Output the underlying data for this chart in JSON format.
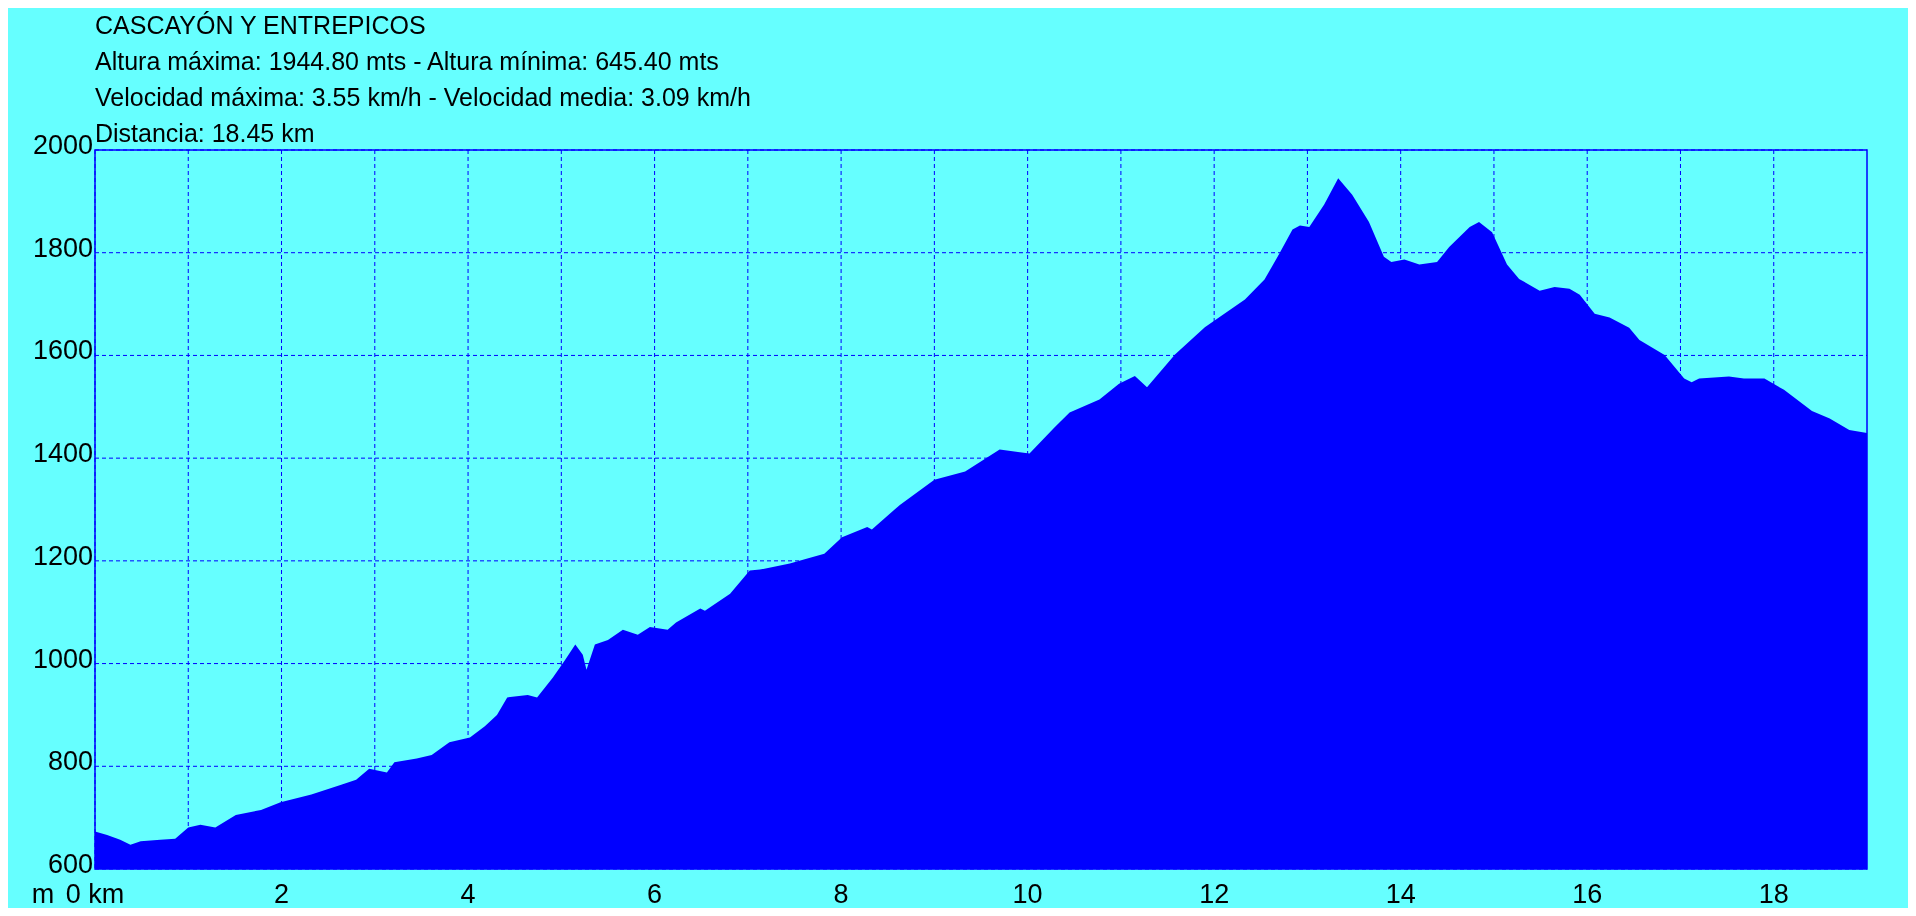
{
  "chart_data": {
    "type": "area",
    "title": "CASCAYÓN Y ENTREPICOS",
    "annotations": [
      "Altura máxima: 1944.80 mts - Altura mínima: 645.40 mts",
      "Velocidad máxima: 3.55 km/h - Velocidad media: 3.09 km/h",
      "Distancia: 18.45 km"
    ],
    "ylabel": "m",
    "x": [
      0,
      0.13,
      0.27,
      0.38,
      0.49,
      0.7,
      0.86,
      1.0,
      1.13,
      1.29,
      1.51,
      1.78,
      1.99,
      2.32,
      2.64,
      2.8,
      2.94,
      3.13,
      3.21,
      3.45,
      3.61,
      3.8,
      4.02,
      4.18,
      4.31,
      4.42,
      4.64,
      4.74,
      4.91,
      5.04,
      5.15,
      5.23,
      5.27,
      5.36,
      5.5,
      5.66,
      5.82,
      5.95,
      6.14,
      6.23,
      6.49,
      6.54,
      6.81,
      7.02,
      7.13,
      7.45,
      7.61,
      7.82,
      8.01,
      8.28,
      8.33,
      8.63,
      9.0,
      9.33,
      9.7,
      10.02,
      10.29,
      10.45,
      10.77,
      10.98,
      11.15,
      11.28,
      11.58,
      11.9,
      12.33,
      12.54,
      12.68,
      12.84,
      12.92,
      13.02,
      13.18,
      13.33,
      13.48,
      13.66,
      13.82,
      13.9,
      14.04,
      14.2,
      14.39,
      14.52,
      14.74,
      14.84,
      14.98,
      15.14,
      15.27,
      15.49,
      15.65,
      15.81,
      15.92,
      16.08,
      16.24,
      16.45,
      16.56,
      16.83,
      17.04,
      17.12,
      17.2,
      17.52,
      17.68,
      17.9,
      18.11,
      18.41,
      18.6,
      18.81,
      19.0
    ],
    "series": [
      {
        "color": "#0000ff",
        "values": [
          673,
          666,
          657,
          647,
          654,
          657,
          659,
          681,
          686,
          681,
          705,
          715,
          730,
          745,
          764,
          774,
          795,
          788,
          808,
          815,
          822,
          847,
          856,
          878,
          900,
          934,
          939,
          934,
          973,
          1007,
          1037,
          1017,
          988,
          1037,
          1046,
          1066,
          1056,
          1071,
          1066,
          1080,
          1107,
          1103,
          1136,
          1181,
          1183,
          1195,
          1203,
          1214,
          1246,
          1266,
          1261,
          1309,
          1358,
          1374,
          1417,
          1409,
          1460,
          1489,
          1514,
          1545,
          1560,
          1538,
          1602,
          1655,
          1709,
          1748,
          1792,
          1845,
          1853,
          1850,
          1894,
          1945,
          1913,
          1860,
          1792,
          1782,
          1787,
          1777,
          1782,
          1811,
          1850,
          1860,
          1840,
          1777,
          1749,
          1726,
          1733,
          1730,
          1718,
          1681,
          1674,
          1654,
          1630,
          1601,
          1555,
          1548,
          1555,
          1559,
          1555,
          1555,
          1533,
          1492,
          1477,
          1455,
          1449
        ]
      }
    ],
    "xlim": [
      0,
      19
    ],
    "xticks": [
      {
        "value": 0,
        "label": "0 km"
      },
      {
        "value": 1,
        "label": null
      },
      2,
      {
        "value": 3,
        "label": null
      },
      4,
      {
        "value": 5,
        "label": null
      },
      6,
      {
        "value": 7,
        "label": null
      },
      8,
      {
        "value": 9,
        "label": null
      },
      10,
      {
        "value": 11,
        "label": null
      },
      12,
      {
        "value": 13,
        "label": null
      },
      14,
      {
        "value": 15,
        "label": null
      },
      16,
      {
        "value": 17,
        "label": null
      },
      18
    ],
    "ylim": [
      600,
      2000
    ],
    "yticks": [
      600,
      800,
      1000,
      1200,
      1400,
      1600,
      1800,
      2000
    ],
    "grid": true,
    "line_style": "dashed"
  }
}
